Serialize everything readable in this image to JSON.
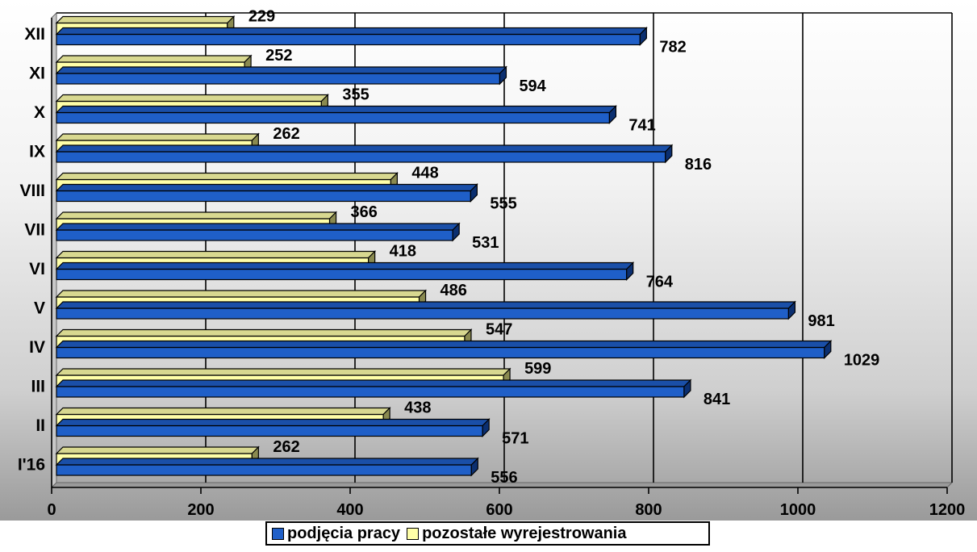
{
  "chart_data": {
    "type": "bar",
    "orientation": "horizontal",
    "categories": [
      "I'16",
      "II",
      "III",
      "IV",
      "V",
      "VI",
      "VII",
      "VIII",
      "IX",
      "X",
      "XI",
      "XII"
    ],
    "series": [
      {
        "name": "podjęcia pracy",
        "color": "#1f5fc8",
        "values": [
          556,
          571,
          841,
          1029,
          981,
          764,
          531,
          555,
          816,
          741,
          594,
          782
        ]
      },
      {
        "name": "pozostałe wyrejestrowania",
        "color": "#ffffa8",
        "values": [
          262,
          438,
          599,
          547,
          486,
          418,
          366,
          448,
          262,
          355,
          252,
          229
        ]
      }
    ],
    "xlim": [
      0,
      1200
    ],
    "xticks": [
      "0",
      "200",
      "400",
      "600",
      "800",
      "1000",
      "1200"
    ],
    "grid": true,
    "legend_position": "bottom"
  }
}
